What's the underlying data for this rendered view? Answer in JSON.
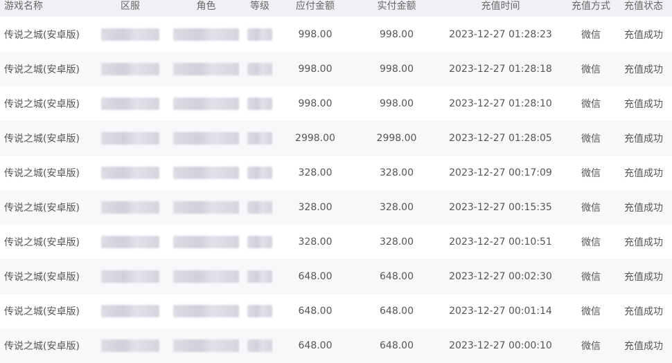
{
  "table": {
    "headers": [
      "游戏名称",
      "区服",
      "角色",
      "等级",
      "应付金额",
      "实付金额",
      "充值时间",
      "充值方式",
      "充值状态"
    ],
    "rows": [
      {
        "game": "传说之城(安卓版)",
        "server": "",
        "role": "",
        "level": "",
        "payable": "998.00",
        "paid": "998.00",
        "time": "2023-12-27 01:28:23",
        "method": "微信",
        "status": "充值成功"
      },
      {
        "game": "传说之城(安卓版)",
        "server": "",
        "role": "",
        "level": "",
        "payable": "998.00",
        "paid": "998.00",
        "time": "2023-12-27 01:28:18",
        "method": "微信",
        "status": "充值成功"
      },
      {
        "game": "传说之城(安卓版)",
        "server": "",
        "role": "",
        "level": "",
        "payable": "998.00",
        "paid": "998.00",
        "time": "2023-12-27 01:28:10",
        "method": "微信",
        "status": "充值成功"
      },
      {
        "game": "传说之城(安卓版)",
        "server": "",
        "role": "",
        "level": "",
        "payable": "2998.00",
        "paid": "2998.00",
        "time": "2023-12-27 01:28:05",
        "method": "微信",
        "status": "充值成功"
      },
      {
        "game": "传说之城(安卓版)",
        "server": "",
        "role": "",
        "level": "",
        "payable": "328.00",
        "paid": "328.00",
        "time": "2023-12-27 00:17:09",
        "method": "微信",
        "status": "充值成功"
      },
      {
        "game": "传说之城(安卓版)",
        "server": "",
        "role": "",
        "level": "",
        "payable": "328.00",
        "paid": "328.00",
        "time": "2023-12-27 00:15:35",
        "method": "微信",
        "status": "充值成功"
      },
      {
        "game": "传说之城(安卓版)",
        "server": "",
        "role": "",
        "level": "",
        "payable": "328.00",
        "paid": "328.00",
        "time": "2023-12-27 00:10:51",
        "method": "微信",
        "status": "充值成功"
      },
      {
        "game": "传说之城(安卓版)",
        "server": "",
        "role": "",
        "level": "",
        "payable": "648.00",
        "paid": "648.00",
        "time": "2023-12-27 00:02:30",
        "method": "微信",
        "status": "充值成功"
      },
      {
        "game": "传说之城(安卓版)",
        "server": "",
        "role": "",
        "level": "",
        "payable": "648.00",
        "paid": "648.00",
        "time": "2023-12-27 00:01:14",
        "method": "微信",
        "status": "充值成功"
      },
      {
        "game": "传说之城(安卓版)",
        "server": "",
        "role": "",
        "level": "",
        "payable": "648.00",
        "paid": "648.00",
        "time": "2023-12-27 00:00:10",
        "method": "微信",
        "status": "充值成功"
      }
    ]
  }
}
